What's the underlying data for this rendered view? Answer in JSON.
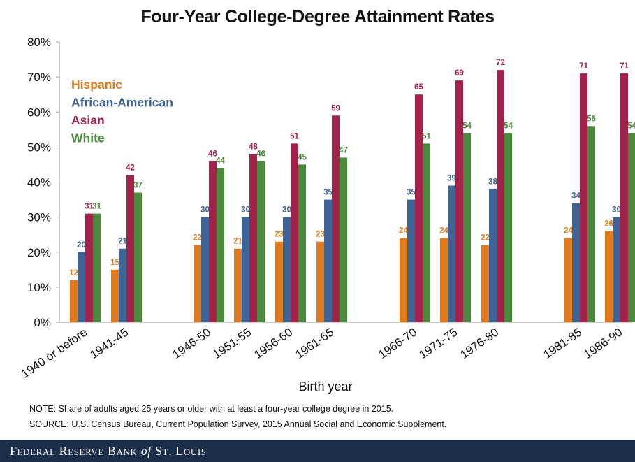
{
  "chart_data": {
    "type": "bar",
    "title": "Four-Year College-Degree Attainment Rates",
    "xlabel": "Birth year",
    "ylabel": "",
    "ylim": [
      0,
      80
    ],
    "yticks": [
      0,
      10,
      20,
      30,
      40,
      50,
      60,
      70,
      80
    ],
    "ytick_labels": [
      "0%",
      "10%",
      "20%",
      "30%",
      "40%",
      "50%",
      "60%",
      "70%",
      "80%"
    ],
    "grid": false,
    "legend_position": "top-left",
    "categories": [
      "1940 or before",
      "1941-45",
      "1946-50",
      "1951-55",
      "1956-60",
      "1961-65",
      "1966-70",
      "1971-75",
      "1976-80",
      "1981-85",
      "1986-90"
    ],
    "series": [
      {
        "name": "Hispanic",
        "color": "#e07a1c",
        "values": [
          12,
          15,
          22,
          21,
          23,
          23,
          24,
          24,
          22,
          24,
          26
        ]
      },
      {
        "name": "African-American",
        "color": "#3d6496",
        "values": [
          20,
          21,
          30,
          30,
          30,
          35,
          35,
          39,
          38,
          34,
          30
        ]
      },
      {
        "name": "Asian",
        "color": "#a3224a",
        "values": [
          31,
          42,
          46,
          48,
          51,
          59,
          65,
          69,
          72,
          71,
          71
        ]
      },
      {
        "name": "White",
        "color": "#4a8a3c",
        "values": [
          31,
          37,
          44,
          46,
          45,
          47,
          51,
          54,
          54,
          56,
          54
        ]
      }
    ]
  },
  "notes": {
    "note": "NOTE: Share of adults aged 25  years or older with at least a four-year college degree in 2015.",
    "source": "SOURCE: U.S. Census Bureau, Current Population Survey, 2015 Annual Social and Economic Supplement."
  },
  "footer": {
    "org_part1": "Federal Reserve Bank ",
    "org_of": "of",
    "org_part2": " St. Louis",
    "background_color": "#1c2e4a"
  }
}
